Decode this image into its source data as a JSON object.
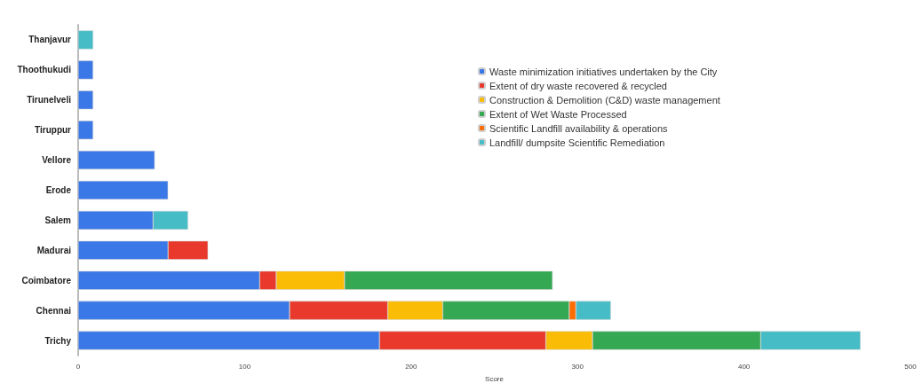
{
  "chart_data": {
    "type": "bar",
    "orientation": "horizontal",
    "stacked": true,
    "xlabel": "Score",
    "categories": [
      "Thanjavur",
      "Thoothukudi",
      "Tirunelveli",
      "Tiruppur",
      "Vellore",
      "Erode",
      "Salem",
      "Madurai",
      "Coimbatore",
      "Chennai",
      "Trichy"
    ],
    "series": [
      {
        "name": "Waste minimization initiatives undertaken by the City",
        "color": "#3b78e7",
        "values": [
          null,
          9,
          9,
          9,
          46,
          54,
          45,
          54,
          109,
          127,
          181
        ]
      },
      {
        "name": "Extent of dry waste recovered & recycled",
        "color": "#e8392c",
        "values": [
          null,
          null,
          null,
          null,
          null,
          null,
          null,
          24,
          10,
          59,
          100
        ]
      },
      {
        "name": "Construction & Demolition (C&D) waste management",
        "color": "#fbbc05",
        "values": [
          null,
          null,
          null,
          null,
          null,
          null,
          null,
          null,
          41,
          33,
          28
        ]
      },
      {
        "name": "Extent of Wet Waste Processed",
        "color": "#34a853",
        "values": [
          null,
          null,
          null,
          null,
          null,
          null,
          null,
          null,
          125,
          76,
          101
        ]
      },
      {
        "name": "Scientific Landfill availability & operations",
        "color": "#ff6d00",
        "values": [
          null,
          null,
          null,
          null,
          null,
          null,
          null,
          null,
          null,
          4,
          null
        ]
      },
      {
        "name": "Landfill/ dumpsite Scientific Remediation",
        "color": "#46bdc6",
        "values": [
          9,
          null,
          null,
          null,
          null,
          null,
          21,
          null,
          null,
          21,
          60
        ]
      }
    ],
    "xlim": [
      0,
      500
    ],
    "xticks": [
      0,
      100,
      200,
      300,
      400,
      500
    ],
    "grid": false,
    "legend": "top right"
  }
}
